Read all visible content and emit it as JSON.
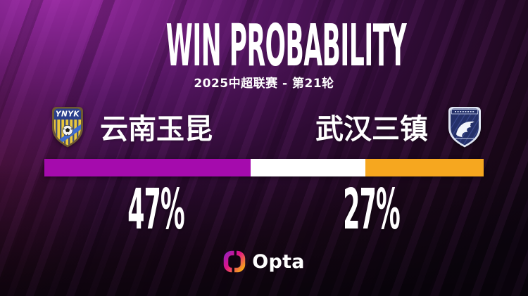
{
  "header": {
    "title": "WIN PROBABILITY",
    "subtitle": "2025中超联赛 - 第21轮"
  },
  "teams": {
    "home": {
      "name": "云南玉昆",
      "badge_text": "YNYK",
      "win_probability": 47,
      "win_probability_label": "47%",
      "color": "#A50BAD"
    },
    "draw": {
      "probability": 26,
      "color": "#FFFFFF"
    },
    "away": {
      "name": "武汉三镇",
      "win_probability": 27,
      "win_probability_label": "27%",
      "color": "#F6A71F"
    }
  },
  "chart_data": {
    "type": "bar",
    "subtype": "horizontal-stacked-probability",
    "title": "WIN PROBABILITY",
    "subtitle": "2025中超联赛 - 第21轮",
    "categories": [
      "云南玉昆 win",
      "Draw",
      "武汉三镇 win"
    ],
    "values": [
      47,
      26,
      27
    ],
    "unit": "%",
    "segment_colors": [
      "#A50BAD",
      "#FFFFFF",
      "#F6A71F"
    ],
    "visible_labels": [
      "47%",
      "27%"
    ],
    "legend_position": "none",
    "grid": false
  },
  "footer": {
    "brand": "Opta"
  },
  "theme": {
    "background_top": "#9C2CA5",
    "background_bottom": "#0D0510",
    "text": "#FFFFFF",
    "home_bar": "#A50BAD",
    "draw_bar": "#FFFFFF",
    "away_bar": "#F6A71F"
  }
}
